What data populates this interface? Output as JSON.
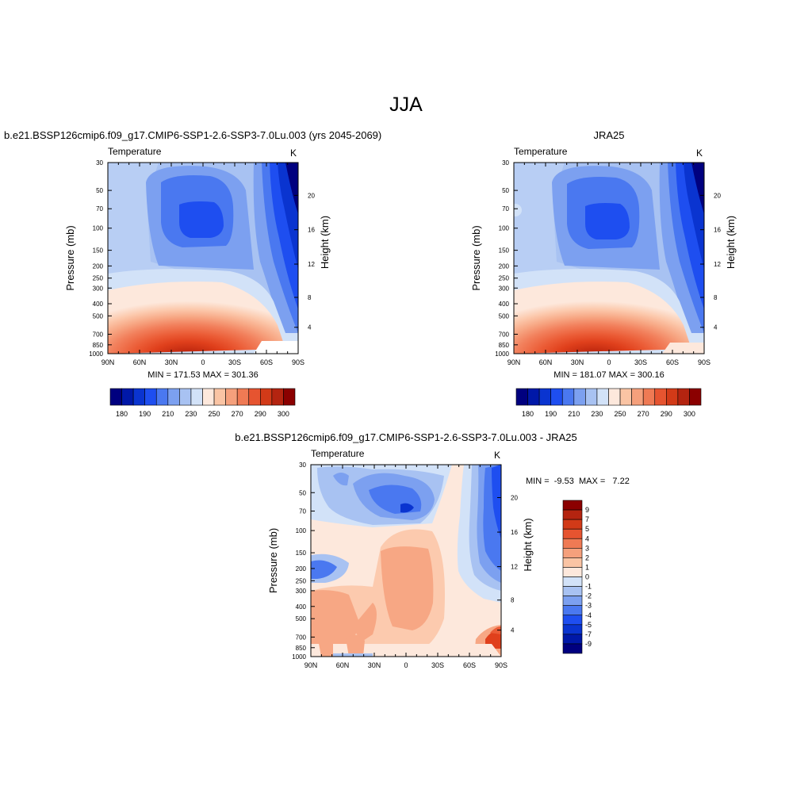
{
  "page_title": "JJA",
  "colors": {
    "cool": [
      "#00007f",
      "#0020a8",
      "#0a3ad0",
      "#1e4ef0",
      "#3c6ef0",
      "#6890f0",
      "#98b4f0",
      "#c4d6f4",
      "#e0ecfa"
    ],
    "warm": [
      "#fde8dc",
      "#fccaae",
      "#f7a784",
      "#f2805c",
      "#eb5c36",
      "#e0401c",
      "#c22a10",
      "#8b0000"
    ]
  },
  "colorbar_full": {
    "labels": [
      "180",
      "190",
      "210",
      "230",
      "250",
      "270",
      "290",
      "300"
    ],
    "colors": [
      "#00007f",
      "#0018a8",
      "#0a34d0",
      "#1e4ef0",
      "#4a78f0",
      "#7ca0f0",
      "#a8c2f2",
      "#d2e2f8",
      "#fde8dc",
      "#fac4a4",
      "#f5a07c",
      "#ef7a54",
      "#e65430",
      "#d23a18",
      "#b42410",
      "#8b0000"
    ]
  },
  "colorbar_diff": {
    "labels": [
      "9",
      "7",
      "5",
      "4",
      "3",
      "2",
      "1",
      "0",
      "-1",
      "-2",
      "-3",
      "-4",
      "-5",
      "-7",
      "-9"
    ],
    "colors": [
      "#8b0000",
      "#b42410",
      "#d23a18",
      "#e65430",
      "#ef7a54",
      "#f5a07c",
      "#fac4a4",
      "#fde8dc",
      "#d2e2f8",
      "#a8c2f2",
      "#7ca0f0",
      "#4a78f0",
      "#1e4ef0",
      "#0a34d0",
      "#0018a8",
      "#00007f"
    ]
  },
  "chart_data": [
    {
      "type": "heatmap",
      "title": "b.e21.BSSP126cmip6.f09_g17.CMIP6-SSP1-2.6-SSP3-7.0Lu.003 (yrs 2045-2069)",
      "left_string": "Temperature",
      "right_string": "K",
      "xlabel": "",
      "ylabel": "Pressure (mb)",
      "ylabel_right": "Height (km)",
      "x_ticks": [
        "90N",
        "60N",
        "30N",
        "0",
        "30S",
        "60S",
        "90S"
      ],
      "y_ticks": [
        "30",
        "50",
        "70",
        "100",
        "150",
        "200",
        "250",
        "300",
        "400",
        "500",
        "700",
        "850",
        "1000"
      ],
      "y_right_ticks": [
        "20",
        "16",
        "12",
        "8",
        "4"
      ],
      "y_scale": "log",
      "ylim": [
        1000,
        30
      ],
      "stats_text": "MIN = 171.53  MAX = 301.36",
      "min": 171.53,
      "max": 301.36
    },
    {
      "type": "heatmap",
      "title": "JRA25",
      "left_string": "Temperature",
      "right_string": "K",
      "xlabel": "",
      "ylabel": "Pressure (mb)",
      "ylabel_right": "Height (km)",
      "x_ticks": [
        "90N",
        "60N",
        "30N",
        "0",
        "30S",
        "60S",
        "90S"
      ],
      "y_ticks": [
        "30",
        "50",
        "70",
        "100",
        "150",
        "200",
        "250",
        "300",
        "400",
        "500",
        "700",
        "850",
        "1000"
      ],
      "y_right_ticks": [
        "20",
        "16",
        "12",
        "8",
        "4"
      ],
      "y_scale": "log",
      "ylim": [
        1000,
        30
      ],
      "stats_text": "MIN = 181.07  MAX = 300.16",
      "min": 181.07,
      "max": 300.16
    },
    {
      "type": "heatmap",
      "title": "b.e21.BSSP126cmip6.f09_g17.CMIP6-SSP1-2.6-SSP3-7.0Lu.003 - JRA25",
      "left_string": "Temperature",
      "right_string": "K",
      "xlabel": "",
      "ylabel": "Pressure (mb)",
      "ylabel_right": "Height (km)",
      "x_ticks": [
        "90N",
        "60N",
        "30N",
        "0",
        "30S",
        "60S",
        "90S"
      ],
      "y_ticks": [
        "30",
        "50",
        "70",
        "100",
        "150",
        "200",
        "250",
        "300",
        "400",
        "500",
        "700",
        "850",
        "1000"
      ],
      "y_right_ticks": [
        "20",
        "16",
        "12",
        "8",
        "4"
      ],
      "y_scale": "log",
      "ylim": [
        1000,
        30
      ],
      "stats_text": "MIN =  -9.53  MAX =   7.22",
      "min": -9.53,
      "max": 7.22
    }
  ]
}
